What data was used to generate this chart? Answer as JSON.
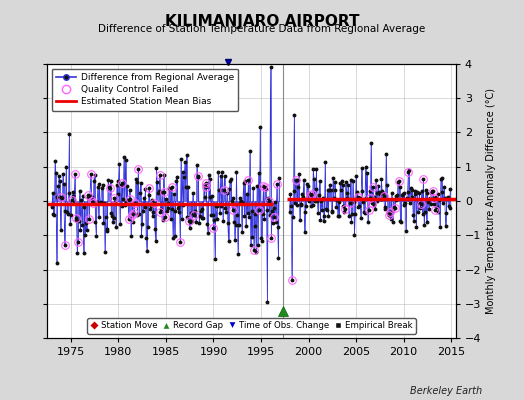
{
  "title": "KILIMANJARO AIRPORT",
  "subtitle": "Difference of Station Temperature Data from Regional Average",
  "ylabel": "Monthly Temperature Anomaly Difference (°C)",
  "xlabel_years": [
    1975,
    1980,
    1985,
    1990,
    1995,
    2000,
    2005,
    2010,
    2015
  ],
  "ylim": [
    -4,
    4
  ],
  "xlim": [
    1972.5,
    2015.5
  ],
  "bias_y1": -0.08,
  "bias_x1_start": 1972.5,
  "bias_x1_end": 1996.3,
  "bias_y2": 0.05,
  "bias_x2_start": 1997.7,
  "bias_x2_end": 2015.5,
  "record_gap_x": 1997.3,
  "record_gap_y": -3.2,
  "time_of_obs_x": 1991.5,
  "vertical_line_x": 1997.3,
  "bg_color": "#d8d8d8",
  "plot_bg_color": "#ffffff",
  "line_color": "#3333dd",
  "dot_color": "#111111",
  "bias_color": "#ee0000",
  "qc_color": "#ff66ff",
  "grid_color": "#bbbbbb",
  "watermark": "Berkeley Earth",
  "seg1_start_year": 1973,
  "seg1_end_year": 1996,
  "seg2_start_year": 1998,
  "seg2_end_year": 2014,
  "seed": 12345
}
